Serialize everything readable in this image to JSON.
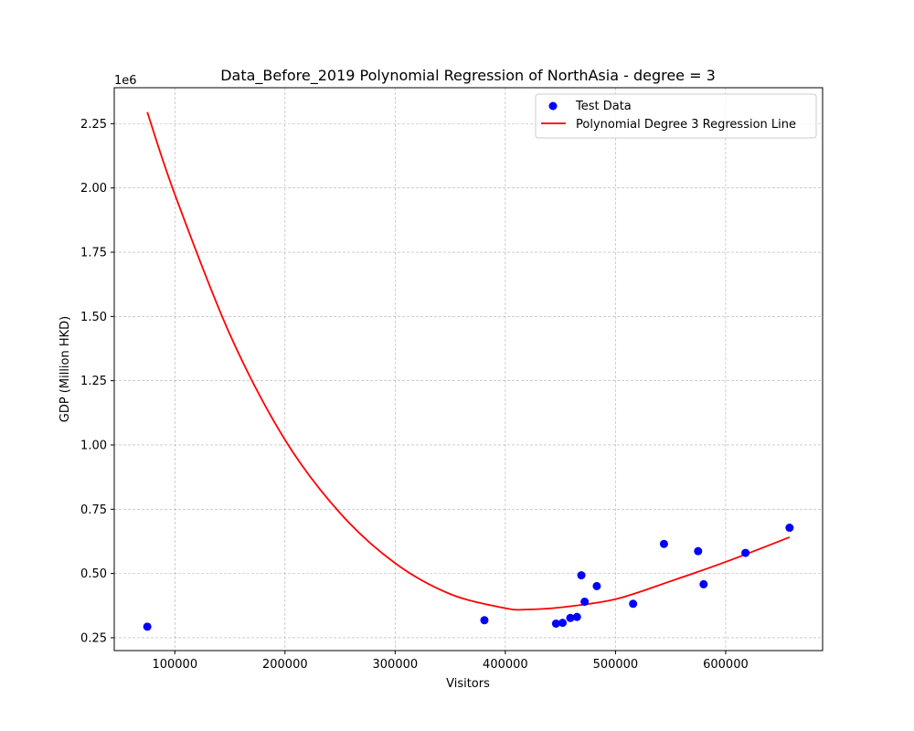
{
  "chart_data": {
    "type": "scatter",
    "title": "Data_Before_2019 Polynomial Regression of NorthAsia - degree = 3",
    "xlabel": "Visitors",
    "ylabel": "GDP (Million HKD)",
    "y_offset_label": "1e6",
    "xlim": [
      45000,
      688000
    ],
    "ylim": [
      200000,
      2390000
    ],
    "x_ticks": [
      100000,
      200000,
      300000,
      400000,
      500000,
      600000
    ],
    "x_tick_labels": [
      "100000",
      "200000",
      "300000",
      "400000",
      "500000",
      "600000"
    ],
    "y_ticks": [
      250000,
      500000,
      750000,
      1000000,
      1250000,
      1500000,
      1750000,
      2000000,
      2250000
    ],
    "y_tick_labels": [
      "0.25",
      "0.50",
      "0.75",
      "1.00",
      "1.25",
      "1.50",
      "1.75",
      "2.00",
      "2.25"
    ],
    "grid": true,
    "legend_position": "upper right",
    "series": [
      {
        "name": "Test Data",
        "kind": "scatter",
        "color": "#0000ff",
        "points": [
          [
            75000,
            293000
          ],
          [
            381000,
            318000
          ],
          [
            446000,
            305000
          ],
          [
            452000,
            308000
          ],
          [
            459000,
            327000
          ],
          [
            465000,
            331000
          ],
          [
            469000,
            493000
          ],
          [
            472000,
            390000
          ],
          [
            483000,
            451000
          ],
          [
            516000,
            382000
          ],
          [
            544000,
            615000
          ],
          [
            575000,
            587000
          ],
          [
            580000,
            458000
          ],
          [
            618000,
            580000
          ],
          [
            658000,
            678000
          ]
        ]
      },
      {
        "name": "Polynomial Degree 3 Regression Line",
        "kind": "line",
        "color": "#ff0000",
        "points": [
          [
            75000,
            2295000
          ],
          [
            100000,
            1975000
          ],
          [
            150000,
            1430000
          ],
          [
            200000,
            1020000
          ],
          [
            250000,
            735000
          ],
          [
            300000,
            540000
          ],
          [
            350000,
            420000
          ],
          [
            400000,
            365000
          ],
          [
            420000,
            360000
          ],
          [
            450000,
            368000
          ],
          [
            500000,
            400000
          ],
          [
            550000,
            470000
          ],
          [
            600000,
            545000
          ],
          [
            658000,
            641000
          ]
        ]
      }
    ]
  }
}
